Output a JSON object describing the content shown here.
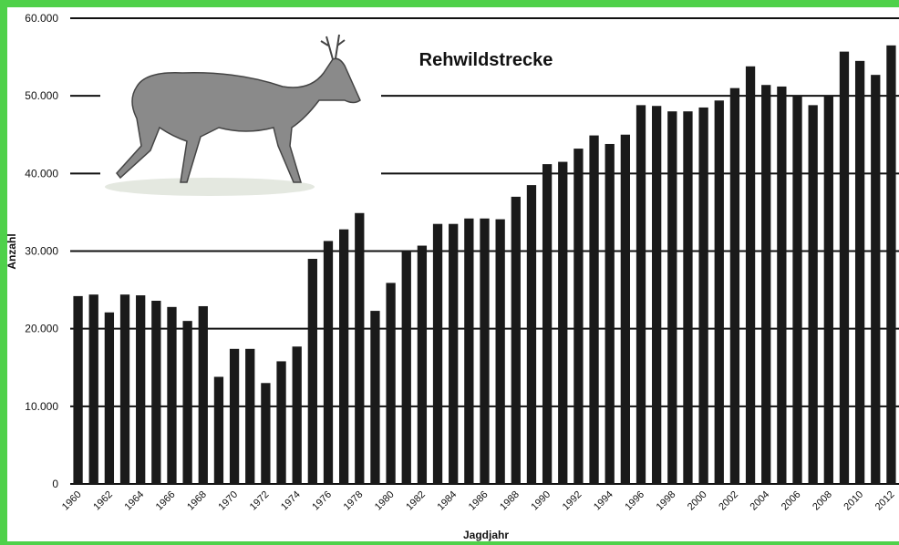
{
  "chart_data": {
    "type": "bar",
    "title": "Rehwildstrecke",
    "x_label": "Jagdjahr",
    "y_label": "Anzahl",
    "categories": [
      "1960",
      null,
      "1962",
      null,
      "1964",
      null,
      "1966",
      null,
      "1968",
      null,
      "1970",
      null,
      "1972",
      null,
      "1974",
      null,
      "1976",
      null,
      "1978",
      null,
      "1980",
      null,
      "1982",
      null,
      "1984",
      null,
      "1986",
      null,
      "1988",
      null,
      "1990",
      null,
      "1992",
      null,
      "1994",
      null,
      "1996",
      null,
      "1998",
      null,
      "2000",
      null,
      "2002",
      null,
      "2004",
      null,
      "2006",
      null,
      "2008",
      null,
      "2010",
      null,
      "2012"
    ],
    "values": [
      24200,
      24400,
      22100,
      24400,
      24300,
      23600,
      22800,
      21000,
      22900,
      13800,
      17400,
      17400,
      13000,
      15800,
      17700,
      29000,
      31300,
      32800,
      34900,
      22300,
      25900,
      30000,
      30700,
      33500,
      33500,
      34200,
      34200,
      34100,
      37000,
      38500,
      41200,
      41500,
      43200,
      44900,
      43800,
      45000,
      48800,
      48700,
      48000,
      48000,
      48500,
      49400,
      51000,
      53800,
      51400,
      51200,
      50000,
      48800,
      50000,
      55700,
      54500,
      52700,
      56500
    ],
    "color": "#1a1a1a",
    "ylim": [
      0,
      60000
    ],
    "yticks": [
      0,
      {
        "value": 10000,
        "label": "10.000"
      },
      {
        "value": 20000,
        "label": "20.000"
      },
      {
        "value": 30000,
        "label": "30.000"
      },
      {
        "value": 40000,
        "label": "40.000"
      },
      {
        "value": 50000,
        "label": "50.000"
      },
      {
        "value": 60000,
        "label": "60.000"
      }
    ],
    "grid": true
  }
}
